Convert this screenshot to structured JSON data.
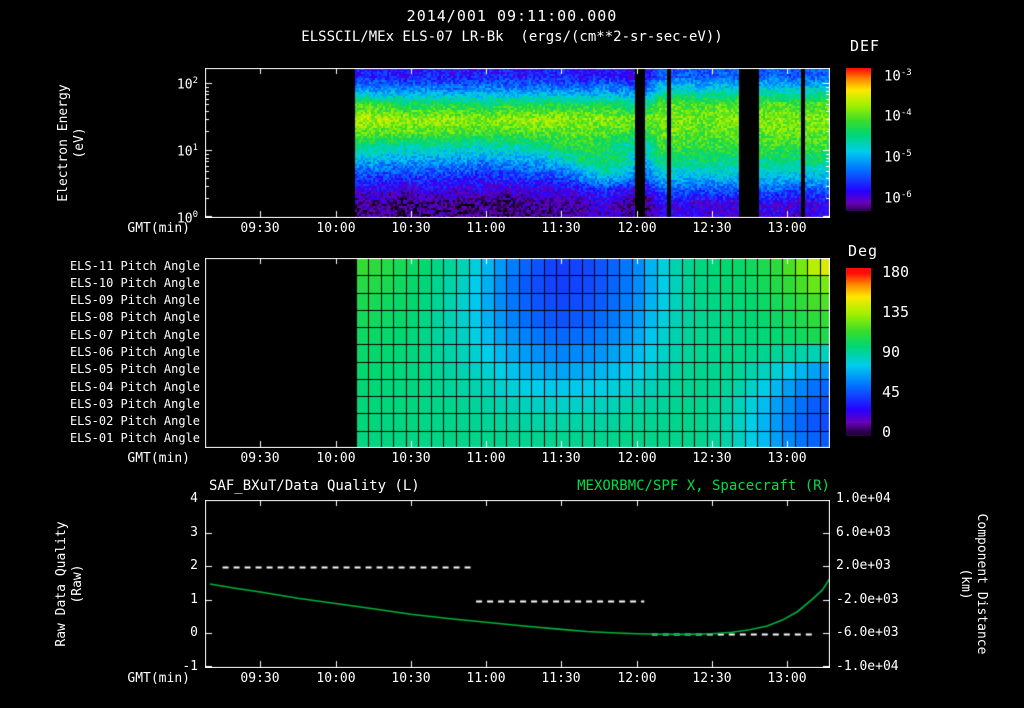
{
  "colors": {
    "background": "#000000",
    "axis_text": "#ffffff",
    "right_title_green": "#00dd44",
    "quality_line": "#ffffff",
    "distance_line": "#00b33c"
  },
  "time_axis": {
    "label": "GMT(min)",
    "ticks": [
      "09:30",
      "10:00",
      "10:30",
      "11:00",
      "11:30",
      "12:00",
      "12:30",
      "13:00"
    ],
    "tick_minutes": [
      30,
      60,
      90,
      120,
      150,
      180,
      210,
      240
    ],
    "range_minutes": [
      8,
      257
    ]
  },
  "chart_data": [
    {
      "id": "electron_energy_spectrogram",
      "type": "heatmap",
      "title": "2014/001 09:11:00.000",
      "subtitle": "ELSSCIL/MEx ELS-07 LR-Bk  (ergs/(cm**2-sr-sec-eV))",
      "ylabel": "Electron Energy",
      "ylabel_unit": "(eV)",
      "xlabel": "GMT(min)",
      "y_scale": "log",
      "y_log_range": [
        0,
        2.24
      ],
      "y_ticks": [
        {
          "base": "10",
          "exp": "2",
          "log": 2
        },
        {
          "base": "10",
          "exp": "1",
          "log": 1
        },
        {
          "base": "10",
          "exp": "0",
          "log": 0
        }
      ],
      "colorbar": {
        "title": "DEF",
        "ticks": [
          {
            "base": "10",
            "exp": "-3",
            "log": -3
          },
          {
            "base": "10",
            "exp": "-4",
            "log": -4
          },
          {
            "base": "10",
            "exp": "-5",
            "log": -5
          },
          {
            "base": "10",
            "exp": "-6",
            "log": -6
          }
        ],
        "log10_display_range": [
          -6.33,
          -2.81
        ]
      },
      "data_start_minute": 68,
      "time_bin_start_minute": 68,
      "time_bin_width_minutes": 7.875,
      "energy_rows_log10_ev": [
        2.12,
        1.9,
        1.69,
        1.48,
        1.28,
        1.06,
        0.85,
        0.64,
        0.42,
        0.2
      ],
      "black_stripes_minutes": [
        [
          179.5,
          183.5
        ],
        [
          192,
          194
        ],
        [
          221,
          229
        ],
        [
          245.5,
          247
        ]
      ],
      "values_log10_flux": [
        [
          -5.7,
          -5.7,
          -5.8,
          -5.7,
          -5.7,
          -5.8,
          -5.7,
          -5.7,
          -5.8,
          -5.7,
          -5.7,
          -5.8,
          -5.7,
          -5.8,
          -5.9,
          -5.4,
          -5.4,
          -5.5,
          -5.4,
          -5.4,
          -5.4,
          -5.4,
          -5.5,
          -5.4
        ],
        [
          -5.1,
          -5.2,
          -5.2,
          -5.1,
          -5.2,
          -5.2,
          -5.1,
          -5.2,
          -5.2,
          -5.1,
          -5.2,
          -5.2,
          -5.1,
          -5.2,
          -5.4,
          -4.7,
          -4.7,
          -4.8,
          -4.7,
          -4.7,
          -4.7,
          -4.7,
          -4.8,
          -4.7
        ],
        [
          -4.1,
          -4.2,
          -4.3,
          -4.3,
          -4.3,
          -4.3,
          -4.4,
          -4.3,
          -4.3,
          -4.3,
          -4.3,
          -4.3,
          -4.3,
          -4.4,
          -4.6,
          -4.0,
          -4.0,
          -4.1,
          -4.0,
          -4.0,
          -4.0,
          -4.0,
          -4.1,
          -4.0
        ],
        [
          -3.65,
          -3.7,
          -3.75,
          -3.75,
          -3.75,
          -3.8,
          -3.85,
          -3.8,
          -3.75,
          -3.75,
          -3.75,
          -3.8,
          -3.8,
          -3.85,
          -4.0,
          -3.85,
          -3.85,
          -3.9,
          -3.85,
          -3.85,
          -3.85,
          -3.85,
          -3.9,
          -3.85
        ],
        [
          -3.95,
          -4.0,
          -4.0,
          -4.0,
          -4.0,
          -4.05,
          -4.1,
          -4.05,
          -4.0,
          -4.0,
          -4.0,
          -4.0,
          -4.05,
          -4.1,
          -4.3,
          -3.95,
          -3.95,
          -4.0,
          -3.95,
          -3.95,
          -3.95,
          -3.95,
          -4.0,
          -3.95
        ],
        [
          -4.5,
          -4.6,
          -4.6,
          -4.6,
          -4.6,
          -4.65,
          -4.7,
          -4.65,
          -4.6,
          -4.5,
          -4.3,
          -4.25,
          -4.3,
          -4.6,
          -4.8,
          -4.15,
          -4.15,
          -4.2,
          -4.15,
          -4.2,
          -4.15,
          -4.15,
          -4.2,
          -4.15
        ],
        [
          -5.0,
          -5.1,
          -5.1,
          -5.1,
          -5.1,
          -5.15,
          -5.2,
          -5.15,
          -5.1,
          -5.0,
          -4.8,
          -4.5,
          -4.35,
          -4.5,
          -5.0,
          -4.45,
          -4.45,
          -4.5,
          -4.45,
          -4.5,
          -4.45,
          -4.45,
          -4.5,
          -4.45
        ],
        [
          -5.5,
          -5.5,
          -5.6,
          -5.5,
          -5.6,
          -5.6,
          -5.6,
          -5.6,
          -5.5,
          -5.5,
          -5.4,
          -5.1,
          -4.8,
          -4.9,
          -5.4,
          -4.85,
          -4.85,
          -4.9,
          -4.85,
          -4.9,
          -4.85,
          -4.85,
          -4.9,
          -4.85
        ],
        [
          -5.9,
          -5.9,
          -6.0,
          -5.9,
          -5.9,
          -6.0,
          -5.9,
          -6.0,
          -5.9,
          -5.9,
          -5.9,
          -5.8,
          -5.6,
          -5.8,
          -6.0,
          -5.4,
          -5.4,
          -5.5,
          -5.4,
          -5.5,
          -5.4,
          -5.4,
          -5.5,
          -5.4
        ],
        [
          -6.2,
          -6.2,
          -6.3,
          -6.2,
          -6.2,
          -6.3,
          -6.2,
          -6.3,
          -6.2,
          -6.2,
          -6.2,
          -6.1,
          -6.0,
          -6.1,
          -6.3,
          -5.9,
          -5.9,
          -6.0,
          -5.9,
          -6.0,
          -5.9,
          -5.9,
          -6.0,
          -5.9
        ]
      ]
    },
    {
      "id": "pitch_angle_heatmap",
      "type": "heatmap",
      "row_labels": [
        "ELS-11 Pitch Angle",
        "ELS-10 Pitch Angle",
        "ELS-09 Pitch Angle",
        "ELS-08 Pitch Angle",
        "ELS-07 Pitch Angle",
        "ELS-06 Pitch Angle",
        "ELS-05 Pitch Angle",
        "ELS-04 Pitch Angle",
        "ELS-03 Pitch Angle",
        "ELS-02 Pitch Angle",
        "ELS-01 Pitch Angle"
      ],
      "xlabel": "GMT(min)",
      "colorbar": {
        "title": "Deg",
        "ticks": [
          180,
          135,
          90,
          45,
          0
        ],
        "range": [
          0,
          180
        ],
        "display_range": [
          -5,
          185
        ]
      },
      "data_start_minute": 68,
      "cell_width_minutes": 5,
      "time_bin_start_minute": 68,
      "time_bin_width_minutes": 7.875,
      "values_deg": [
        [
          112,
          108,
          102,
          98,
          92,
          85,
          72,
          60,
          50,
          43,
          40,
          42,
          46,
          52,
          62,
          78,
          90,
          95,
          97,
          100,
          104,
          112,
          124,
          145
        ],
        [
          108,
          105,
          100,
          96,
          90,
          82,
          70,
          57,
          47,
          42,
          40,
          42,
          46,
          52,
          62,
          76,
          88,
          94,
          96,
          99,
          102,
          108,
          116,
          126
        ],
        [
          105,
          102,
          99,
          95,
          89,
          80,
          69,
          57,
          49,
          44,
          42,
          44,
          48,
          54,
          63,
          77,
          88,
          93,
          95,
          97,
          100,
          104,
          110,
          118
        ],
        [
          103,
          101,
          98,
          94,
          88,
          80,
          70,
          60,
          52,
          47,
          45,
          47,
          51,
          57,
          66,
          78,
          88,
          92,
          94,
          96,
          98,
          101,
          106,
          112
        ],
        [
          101,
          99,
          97,
          93,
          88,
          82,
          73,
          64,
          57,
          52,
          50,
          52,
          56,
          61,
          69,
          80,
          89,
          92,
          94,
          95,
          96,
          98,
          102,
          106
        ],
        [
          99,
          98,
          96,
          93,
          89,
          84,
          77,
          69,
          63,
          59,
          57,
          59,
          62,
          67,
          73,
          82,
          89,
          92,
          93,
          93,
          92,
          90,
          88,
          84
        ],
        [
          98,
          97,
          95,
          93,
          90,
          86,
          81,
          75,
          70,
          67,
          65,
          67,
          70,
          73,
          78,
          85,
          90,
          92,
          92,
          90,
          85,
          78,
          70,
          62
        ],
        [
          97,
          96,
          95,
          94,
          91,
          88,
          85,
          81,
          77,
          75,
          74,
          75,
          77,
          80,
          83,
          88,
          91,
          92,
          91,
          87,
          78,
          68,
          58,
          50
        ],
        [
          96,
          96,
          95,
          94,
          93,
          91,
          89,
          86,
          84,
          82,
          82,
          82,
          84,
          86,
          88,
          90,
          92,
          92,
          90,
          84,
          73,
          62,
          52,
          45
        ],
        [
          96,
          95,
          95,
          94,
          93,
          92,
          91,
          90,
          89,
          88,
          88,
          88,
          89,
          90,
          91,
          92,
          93,
          92,
          89,
          82,
          71,
          60,
          50,
          44
        ],
        [
          95,
          95,
          94,
          94,
          94,
          93,
          93,
          92,
          92,
          92,
          92,
          92,
          92,
          93,
          93,
          93,
          93,
          92,
          89,
          82,
          72,
          62,
          53,
          47
        ]
      ]
    },
    {
      "id": "quality_and_distance_timeseries",
      "type": "line",
      "title_left": "SAF_BXuT/Data Quality (L)",
      "title_right": "MEXORBMC/SPF X, Spacecraft (R)",
      "xlabel": "GMT(min)",
      "ylabel_left": "Raw Data Quality",
      "ylabel_left_unit": "(Raw)",
      "ylabel_right": "Component Distance",
      "ylabel_right_unit": "(km)",
      "y_left_range": [
        -1,
        4
      ],
      "y_left_ticks": [
        4,
        3,
        2,
        1,
        0,
        -1
      ],
      "y_right_range": [
        -10000,
        10000
      ],
      "y_right_ticks": [
        "1.0e+04",
        "6.0e+03",
        "2.0e+03",
        "-2.0e+03",
        "-6.0e+03",
        "-1.0e+04"
      ],
      "y_right_tick_values": [
        10000,
        6000,
        2000,
        -2000,
        -6000,
        -10000
      ],
      "series": [
        {
          "name": "SAF_BXuT/Data Quality",
          "axis": "left",
          "style": "dashed",
          "color": "#ffffff",
          "segments": [
            {
              "value": 2,
              "t_start": 15,
              "t_end": 114
            },
            {
              "value": 1,
              "t_start": 116,
              "t_end": 183
            },
            {
              "value": 0,
              "t_start": 186,
              "t_end": 251
            }
          ]
        },
        {
          "name": "MEXORBMC/SPF X, Spacecraft",
          "axis": "right",
          "style": "solid",
          "color": "#00b33c",
          "t_minutes": [
            10,
            20,
            30,
            45,
            60,
            75,
            90,
            105,
            120,
            135,
            150,
            160,
            170,
            180,
            190,
            200,
            210,
            218,
            225,
            232,
            238,
            244,
            250,
            254,
            257
          ],
          "values_km": [
            0,
            -500,
            -960,
            -1700,
            -2320,
            -2950,
            -3600,
            -4100,
            -4560,
            -5000,
            -5400,
            -5650,
            -5800,
            -5920,
            -5980,
            -6000,
            -5930,
            -5750,
            -5450,
            -5000,
            -4300,
            -3300,
            -1800,
            -700,
            700
          ]
        }
      ]
    }
  ]
}
